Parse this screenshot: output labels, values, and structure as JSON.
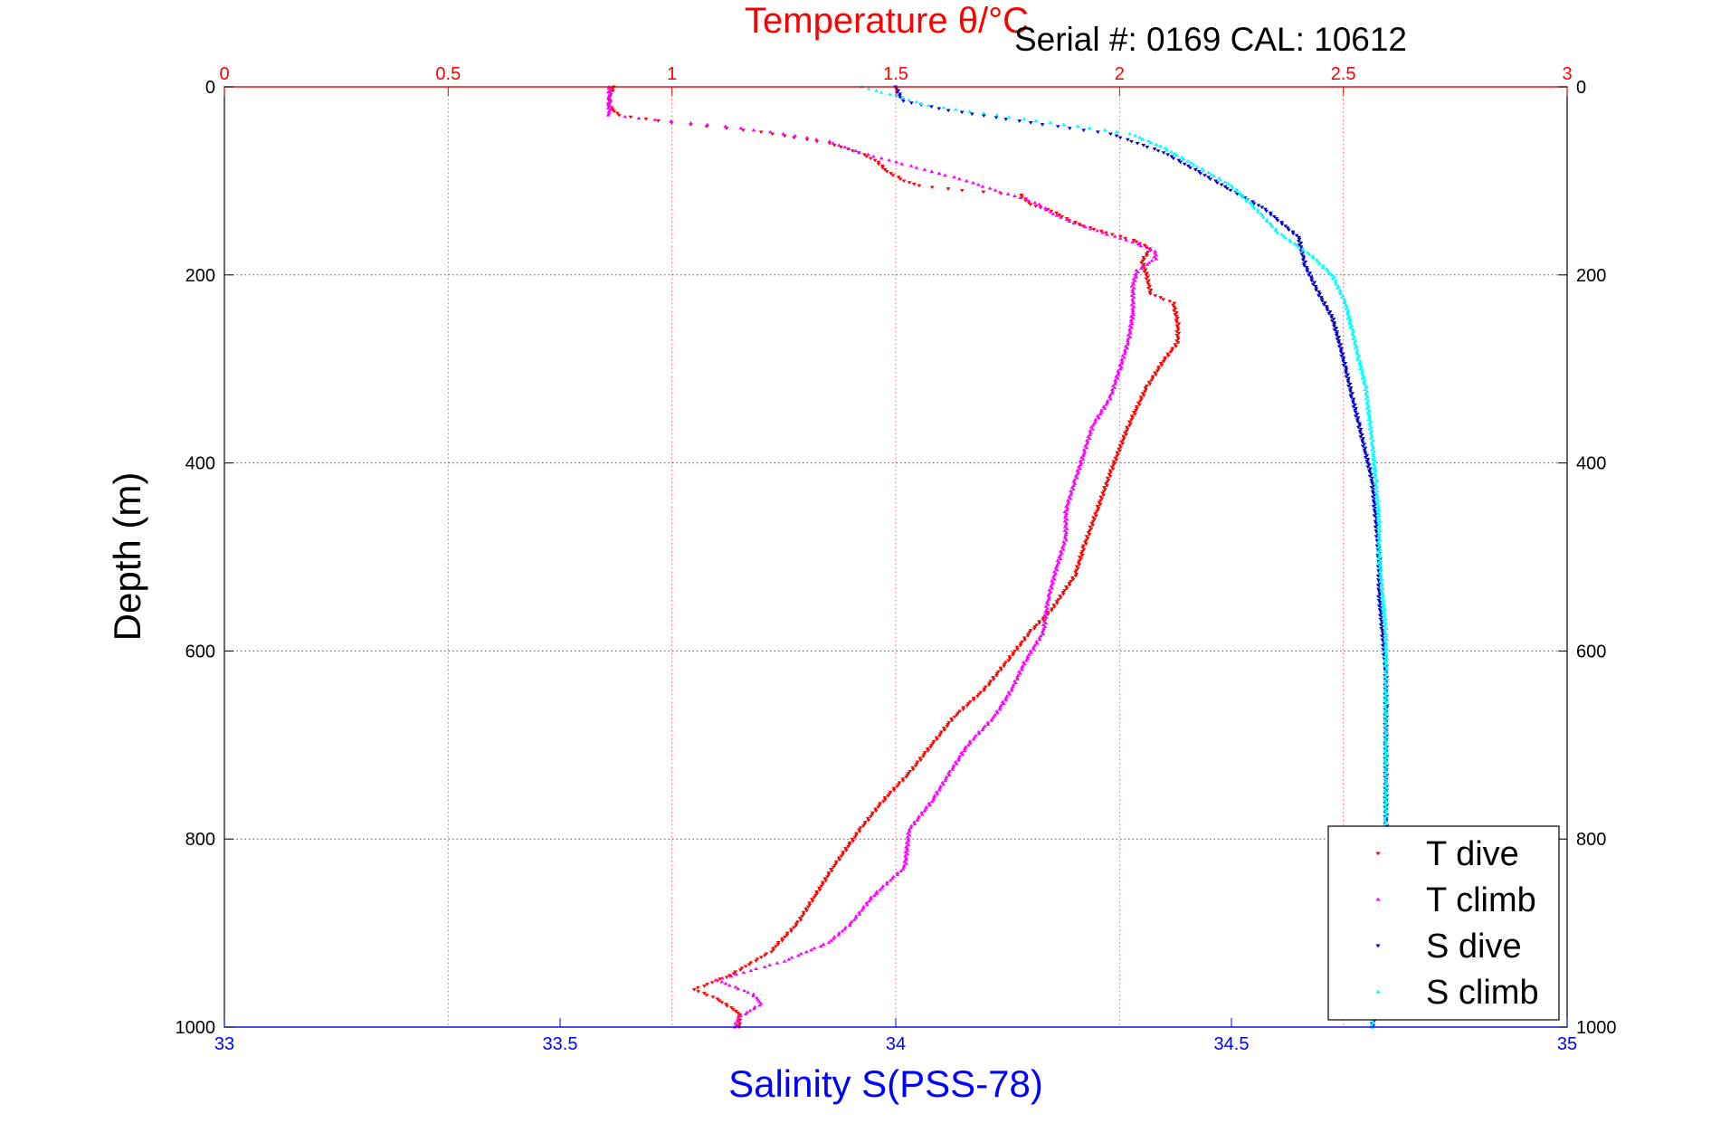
{
  "chart_data": {
    "type": "scatter",
    "title": "Temperature θ/°C",
    "subtitle": "Serial #: 0169 CAL: 10612",
    "top_axis": {
      "label": "Temperature θ/°C",
      "range": [
        0,
        3
      ],
      "ticks": [
        0,
        0.5,
        1,
        1.5,
        2,
        2.5,
        3
      ],
      "tick_labels": [
        "0",
        "0.5",
        "1",
        "1.5",
        "2",
        "2.5",
        "3"
      ],
      "color": "#ff0000"
    },
    "bottom_axis": {
      "label": "Salinity S(PSS-78)",
      "range": [
        33,
        35
      ],
      "ticks": [
        33,
        33.5,
        34,
        34.5,
        35
      ],
      "tick_labels": [
        "33",
        "33.5",
        "34",
        "34.5",
        "35"
      ],
      "color": "#0000ff"
    },
    "y_axis": {
      "label": "Depth (m)",
      "range": [
        0,
        1000
      ],
      "inverted": true,
      "ticks": [
        0,
        200,
        400,
        600,
        800,
        1000
      ],
      "tick_labels": [
        "0",
        "200",
        "400",
        "600",
        "800",
        "1000"
      ]
    },
    "grid": true,
    "legend_position": "bottom-right",
    "series": [
      {
        "name": "T dive",
        "axis": "top",
        "color": "#ff0000",
        "marker": "triangle-down",
        "points": [
          [
            0.87,
            0
          ],
          [
            0.86,
            10
          ],
          [
            0.86,
            20
          ],
          [
            0.88,
            30
          ],
          [
            1.0,
            38
          ],
          [
            1.2,
            48
          ],
          [
            1.35,
            60
          ],
          [
            1.42,
            70
          ],
          [
            1.46,
            80
          ],
          [
            1.48,
            90
          ],
          [
            1.52,
            100
          ],
          [
            1.55,
            105
          ],
          [
            1.65,
            110
          ],
          [
            1.78,
            115
          ],
          [
            1.8,
            125
          ],
          [
            1.85,
            132
          ],
          [
            1.88,
            140
          ],
          [
            1.92,
            148
          ],
          [
            1.97,
            155
          ],
          [
            2.03,
            163
          ],
          [
            2.07,
            172
          ],
          [
            2.05,
            185
          ],
          [
            2.06,
            200
          ],
          [
            2.07,
            220
          ],
          [
            2.12,
            230
          ],
          [
            2.13,
            250
          ],
          [
            2.13,
            272
          ],
          [
            2.1,
            290
          ],
          [
            2.06,
            320
          ],
          [
            2.02,
            360
          ],
          [
            2.0,
            385
          ],
          [
            1.98,
            410
          ],
          [
            1.95,
            450
          ],
          [
            1.92,
            490
          ],
          [
            1.9,
            520
          ],
          [
            1.85,
            555
          ],
          [
            1.8,
            580
          ],
          [
            1.75,
            610
          ],
          [
            1.7,
            640
          ],
          [
            1.63,
            670
          ],
          [
            1.58,
            700
          ],
          [
            1.53,
            730
          ],
          [
            1.47,
            760
          ],
          [
            1.42,
            790
          ],
          [
            1.36,
            830
          ],
          [
            1.32,
            860
          ],
          [
            1.28,
            890
          ],
          [
            1.22,
            920
          ],
          [
            1.13,
            945
          ],
          [
            1.05,
            960
          ],
          [
            1.1,
            970
          ],
          [
            1.15,
            985
          ],
          [
            1.15,
            1000
          ]
        ]
      },
      {
        "name": "T climb",
        "axis": "top",
        "color": "#ff00ff",
        "marker": "triangle-up",
        "points": [
          [
            0.86,
            0
          ],
          [
            0.86,
            15
          ],
          [
            0.86,
            30
          ],
          [
            0.96,
            35
          ],
          [
            1.12,
            42
          ],
          [
            1.25,
            50
          ],
          [
            1.35,
            58
          ],
          [
            1.42,
            70
          ],
          [
            1.5,
            80
          ],
          [
            1.58,
            90
          ],
          [
            1.66,
            100
          ],
          [
            1.72,
            110
          ],
          [
            1.78,
            118
          ],
          [
            1.82,
            125
          ],
          [
            1.85,
            135
          ],
          [
            1.9,
            145
          ],
          [
            1.96,
            155
          ],
          [
            2.03,
            165
          ],
          [
            2.08,
            175
          ],
          [
            2.08,
            183
          ],
          [
            2.04,
            195
          ],
          [
            2.03,
            210
          ],
          [
            2.03,
            240
          ],
          [
            2.02,
            270
          ],
          [
            2.0,
            300
          ],
          [
            1.98,
            330
          ],
          [
            1.94,
            360
          ],
          [
            1.92,
            390
          ],
          [
            1.9,
            420
          ],
          [
            1.88,
            450
          ],
          [
            1.88,
            480
          ],
          [
            1.86,
            510
          ],
          [
            1.84,
            545
          ],
          [
            1.83,
            580
          ],
          [
            1.79,
            610
          ],
          [
            1.76,
            640
          ],
          [
            1.72,
            670
          ],
          [
            1.66,
            700
          ],
          [
            1.62,
            730
          ],
          [
            1.58,
            760
          ],
          [
            1.53,
            790
          ],
          [
            1.52,
            830
          ],
          [
            1.45,
            860
          ],
          [
            1.4,
            890
          ],
          [
            1.35,
            910
          ],
          [
            1.25,
            930
          ],
          [
            1.1,
            950
          ],
          [
            1.18,
            965
          ],
          [
            1.2,
            975
          ],
          [
            1.15,
            990
          ],
          [
            1.14,
            1000
          ]
        ]
      },
      {
        "name": "S dive",
        "axis": "bottom",
        "color": "#0000cc",
        "marker": "triangle-down",
        "points": [
          [
            34.0,
            0
          ],
          [
            34.01,
            15
          ],
          [
            34.08,
            25
          ],
          [
            34.2,
            38
          ],
          [
            34.32,
            50
          ],
          [
            34.4,
            70
          ],
          [
            34.45,
            90
          ],
          [
            34.5,
            110
          ],
          [
            34.55,
            130
          ],
          [
            34.6,
            160
          ],
          [
            34.61,
            190
          ],
          [
            34.63,
            220
          ],
          [
            34.65,
            245
          ],
          [
            34.66,
            270
          ],
          [
            34.67,
            300
          ],
          [
            34.68,
            330
          ],
          [
            34.69,
            360
          ],
          [
            34.7,
            390
          ],
          [
            34.71,
            420
          ],
          [
            34.715,
            460
          ],
          [
            34.72,
            500
          ],
          [
            34.72,
            540
          ],
          [
            34.725,
            580
          ],
          [
            34.73,
            620
          ],
          [
            34.73,
            660
          ],
          [
            34.73,
            700
          ],
          [
            34.73,
            740
          ],
          [
            34.73,
            780
          ],
          [
            34.73,
            820
          ],
          [
            34.725,
            860
          ],
          [
            34.72,
            900
          ],
          [
            34.72,
            940
          ],
          [
            34.71,
            1000
          ]
        ]
      },
      {
        "name": "S climb",
        "axis": "bottom",
        "color": "#00ffff",
        "marker": "triangle-up",
        "points": [
          [
            33.95,
            0
          ],
          [
            34.0,
            10
          ],
          [
            34.05,
            20
          ],
          [
            34.15,
            30
          ],
          [
            34.25,
            40
          ],
          [
            34.35,
            50
          ],
          [
            34.4,
            65
          ],
          [
            34.45,
            85
          ],
          [
            34.5,
            105
          ],
          [
            34.53,
            125
          ],
          [
            34.57,
            155
          ],
          [
            34.62,
            180
          ],
          [
            34.65,
            200
          ],
          [
            34.67,
            230
          ],
          [
            34.68,
            260
          ],
          [
            34.69,
            290
          ],
          [
            34.7,
            320
          ],
          [
            34.705,
            350
          ],
          [
            34.71,
            380
          ],
          [
            34.715,
            420
          ],
          [
            34.72,
            460
          ],
          [
            34.72,
            500
          ],
          [
            34.725,
            540
          ],
          [
            34.73,
            580
          ],
          [
            34.73,
            620
          ],
          [
            34.73,
            660
          ],
          [
            34.73,
            700
          ],
          [
            34.73,
            740
          ],
          [
            34.73,
            780
          ],
          [
            34.725,
            820
          ],
          [
            34.72,
            860
          ],
          [
            34.72,
            900
          ],
          [
            34.715,
            950
          ],
          [
            34.71,
            1000
          ]
        ]
      }
    ]
  }
}
